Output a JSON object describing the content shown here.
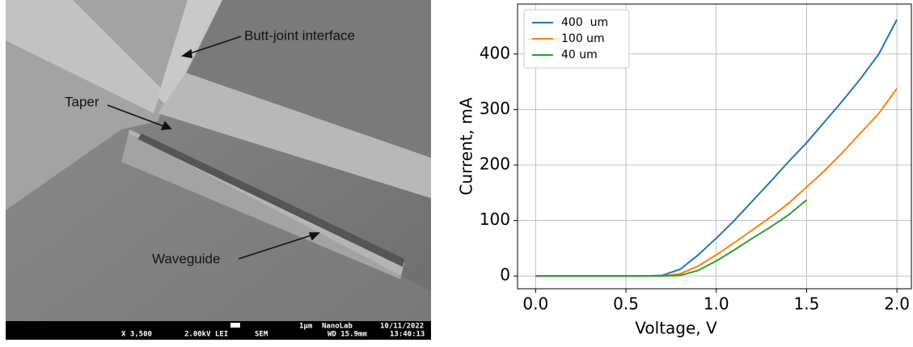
{
  "figure": {
    "annotations": [
      "Butt-joint interface",
      "Taper",
      "Waveguide"
    ],
    "info_bar": [
      "X 3,500",
      "2.00kV LEI",
      "SEM",
      "1µm",
      "NanoLab",
      "10/11/2022",
      "WD 15.9mm",
      "13:40:13"
    ]
  },
  "chart_data": {
    "type": "line",
    "x": [
      0.0,
      0.1,
      0.2,
      0.3,
      0.4,
      0.5,
      0.6,
      0.7,
      0.8,
      0.9,
      1.0,
      1.1,
      1.2,
      1.3,
      1.4,
      1.5,
      1.6,
      1.7,
      1.8,
      1.9,
      2.0
    ],
    "series": [
      {
        "name": "400  um",
        "color": "#1f77b4",
        "values": [
          0,
          0,
          0,
          0,
          0,
          0,
          0,
          1,
          12,
          38,
          68,
          100,
          135,
          170,
          206,
          240,
          278,
          316,
          356,
          400,
          462
        ]
      },
      {
        "name": "100 um",
        "color": "#ff7f0e",
        "values": [
          0,
          0,
          0,
          0,
          0,
          0,
          0,
          0,
          4,
          18,
          38,
          60,
          83,
          106,
          131,
          160,
          190,
          223,
          258,
          293,
          338
        ]
      },
      {
        "name": "40 um",
        "color": "#2ca02c",
        "values": [
          0,
          0,
          0,
          0,
          0,
          0,
          0,
          0,
          1,
          10,
          27,
          47,
          68,
          88,
          110,
          137,
          null,
          null,
          null,
          null,
          null
        ]
      }
    ],
    "x_label": "Voltage, V",
    "y_label": "Current, mA",
    "xlim": [
      -0.1,
      2.08
    ],
    "ylim": [
      -23,
      490
    ],
    "xticks": [
      {
        "value": 0,
        "label": "0.0"
      },
      0.5,
      {
        "value": 1,
        "label": "1.0"
      },
      1.5,
      {
        "value": 2,
        "label": "2.0"
      }
    ],
    "yticks": [
      0,
      100,
      200,
      300,
      400
    ],
    "grid": true,
    "legend": "upper-left"
  }
}
